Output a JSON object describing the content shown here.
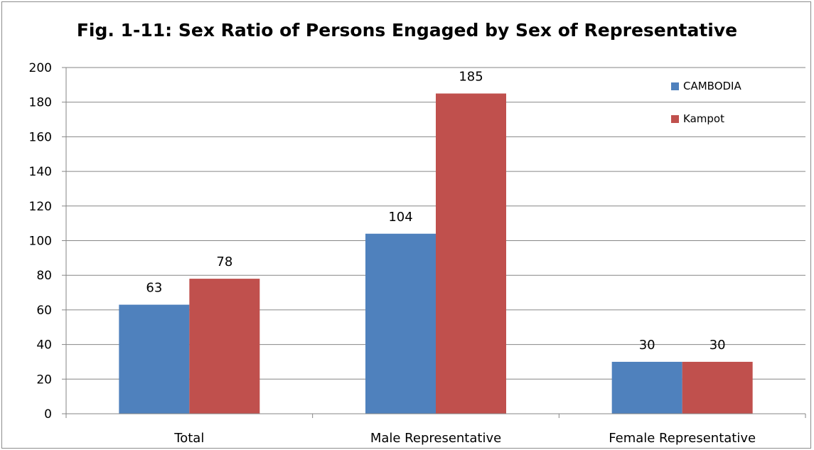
{
  "chart_data": {
    "type": "bar",
    "title": "Fig. 1-11: Sex Ratio of Persons Engaged by Sex of Representative",
    "categories": [
      "Total",
      "Male Representative",
      "Female Representative"
    ],
    "series": [
      {
        "name": "CAMBODIA",
        "values": [
          63,
          104,
          30
        ],
        "color": "#4f81bd"
      },
      {
        "name": "Kampot",
        "values": [
          78,
          185,
          30
        ],
        "color": "#c0504d"
      }
    ],
    "xlabel": "",
    "ylabel": "",
    "ylim": [
      0,
      200
    ],
    "yticks": [
      "0",
      "20",
      "40",
      "60",
      "80",
      "100",
      "120",
      "140",
      "160",
      "180",
      "200"
    ],
    "grid": true,
    "legend_position": "top-right",
    "data_labels": true
  }
}
